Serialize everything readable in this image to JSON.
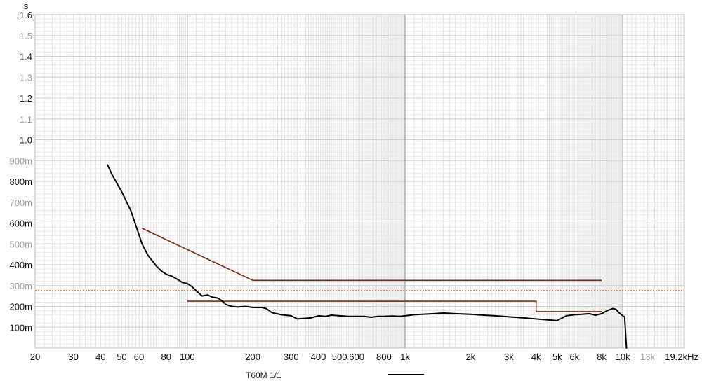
{
  "chart_data": {
    "type": "line",
    "x_scale": "log",
    "y_unit": "s",
    "x_unit_suffix": "kHz",
    "xlim": [
      20,
      19200
    ],
    "ylim": [
      0,
      1.6
    ],
    "grid": true,
    "x_ticks": [
      {
        "value": 20,
        "label": "20",
        "style": "major"
      },
      {
        "value": 30,
        "label": "30",
        "style": "major"
      },
      {
        "value": 40,
        "label": "40",
        "style": "major"
      },
      {
        "value": 50,
        "label": "50",
        "style": "major"
      },
      {
        "value": 60,
        "label": "60",
        "style": "major"
      },
      {
        "value": 80,
        "label": "80",
        "style": "major"
      },
      {
        "value": 100,
        "label": "100",
        "style": "major"
      },
      {
        "value": 200,
        "label": "200",
        "style": "major"
      },
      {
        "value": 300,
        "label": "300",
        "style": "major"
      },
      {
        "value": 400,
        "label": "400",
        "style": "major"
      },
      {
        "value": 500,
        "label": "500",
        "style": "major"
      },
      {
        "value": 600,
        "label": "600",
        "style": "major"
      },
      {
        "value": 800,
        "label": "800",
        "style": "major"
      },
      {
        "value": 1000,
        "label": "1k",
        "style": "major"
      },
      {
        "value": 2000,
        "label": "2k",
        "style": "major"
      },
      {
        "value": 3000,
        "label": "3k",
        "style": "major"
      },
      {
        "value": 4000,
        "label": "4k",
        "style": "major"
      },
      {
        "value": 5000,
        "label": "5k",
        "style": "major"
      },
      {
        "value": 6000,
        "label": "6k",
        "style": "major"
      },
      {
        "value": 8000,
        "label": "8k",
        "style": "major"
      },
      {
        "value": 10000,
        "label": "10k",
        "style": "major"
      },
      {
        "value": 13000,
        "label": "13k",
        "style": "minor"
      },
      {
        "value": 19200,
        "label": "19.2kHz",
        "style": "major"
      }
    ],
    "y_ticks": [
      {
        "value": 0.1,
        "label": "100m",
        "style": "major"
      },
      {
        "value": 0.2,
        "label": "200m",
        "style": "major"
      },
      {
        "value": 0.3,
        "label": "300m",
        "style": "minor"
      },
      {
        "value": 0.4,
        "label": "400m",
        "style": "major"
      },
      {
        "value": 0.5,
        "label": "500m",
        "style": "minor"
      },
      {
        "value": 0.6,
        "label": "600m",
        "style": "major"
      },
      {
        "value": 0.7,
        "label": "700m",
        "style": "minor"
      },
      {
        "value": 0.8,
        "label": "800m",
        "style": "major"
      },
      {
        "value": 0.9,
        "label": "900m",
        "style": "minor"
      },
      {
        "value": 1.0,
        "label": "1.0",
        "style": "major"
      },
      {
        "value": 1.1,
        "label": "1.1",
        "style": "minor"
      },
      {
        "value": 1.2,
        "label": "1.2",
        "style": "major"
      },
      {
        "value": 1.3,
        "label": "1.3",
        "style": "minor"
      },
      {
        "value": 1.4,
        "label": "1.4",
        "style": "major"
      },
      {
        "value": 1.5,
        "label": "1.5",
        "style": "minor"
      },
      {
        "value": 1.6,
        "label": "1.6",
        "style": "major"
      }
    ],
    "series": [
      {
        "name": "T60M 1/1",
        "color": "#000000",
        "points": [
          [
            43,
            0.88
          ],
          [
            45,
            0.835
          ],
          [
            50,
            0.75
          ],
          [
            55,
            0.66
          ],
          [
            58,
            0.59
          ],
          [
            62,
            0.5
          ],
          [
            66,
            0.445
          ],
          [
            72,
            0.395
          ],
          [
            76,
            0.37
          ],
          [
            80,
            0.355
          ],
          [
            85,
            0.345
          ],
          [
            90,
            0.33
          ],
          [
            95,
            0.315
          ],
          [
            100,
            0.31
          ],
          [
            105,
            0.295
          ],
          [
            110,
            0.275
          ],
          [
            117,
            0.25
          ],
          [
            124,
            0.255
          ],
          [
            130,
            0.245
          ],
          [
            138,
            0.24
          ],
          [
            145,
            0.225
          ],
          [
            150,
            0.21
          ],
          [
            160,
            0.2
          ],
          [
            170,
            0.197
          ],
          [
            185,
            0.2
          ],
          [
            200,
            0.195
          ],
          [
            220,
            0.195
          ],
          [
            230,
            0.19
          ],
          [
            245,
            0.17
          ],
          [
            270,
            0.16
          ],
          [
            300,
            0.155
          ],
          [
            320,
            0.14
          ],
          [
            340,
            0.142
          ],
          [
            370,
            0.145
          ],
          [
            400,
            0.155
          ],
          [
            430,
            0.152
          ],
          [
            460,
            0.158
          ],
          [
            500,
            0.155
          ],
          [
            550,
            0.152
          ],
          [
            600,
            0.152
          ],
          [
            650,
            0.152
          ],
          [
            700,
            0.148
          ],
          [
            750,
            0.152
          ],
          [
            800,
            0.152
          ],
          [
            870,
            0.154
          ],
          [
            950,
            0.152
          ],
          [
            1000,
            0.155
          ],
          [
            1100,
            0.16
          ],
          [
            1200,
            0.162
          ],
          [
            1350,
            0.165
          ],
          [
            1500,
            0.168
          ],
          [
            1700,
            0.165
          ],
          [
            2000,
            0.162
          ],
          [
            2300,
            0.158
          ],
          [
            2600,
            0.155
          ],
          [
            3000,
            0.15
          ],
          [
            3500,
            0.145
          ],
          [
            4000,
            0.14
          ],
          [
            4500,
            0.135
          ],
          [
            5000,
            0.132
          ],
          [
            5500,
            0.155
          ],
          [
            6000,
            0.16
          ],
          [
            6500,
            0.162
          ],
          [
            7000,
            0.165
          ],
          [
            7500,
            0.158
          ],
          [
            8000,
            0.165
          ],
          [
            8500,
            0.18
          ],
          [
            9000,
            0.19
          ],
          [
            9300,
            0.186
          ],
          [
            9600,
            0.17
          ],
          [
            10000,
            0.155
          ],
          [
            10200,
            0.15
          ],
          [
            10400,
            0.0
          ]
        ]
      }
    ],
    "reference_lines": [
      {
        "color": "#6b2e18",
        "points": [
          [
            62,
            0.575
          ],
          [
            200,
            0.325
          ],
          [
            8000,
            0.325
          ]
        ]
      },
      {
        "color": "#6b2e18",
        "points": [
          [
            100,
            0.225
          ],
          [
            4000,
            0.225
          ],
          [
            4000,
            0.175
          ],
          [
            8000,
            0.175
          ]
        ]
      }
    ],
    "dotted_line": {
      "y": 0.275,
      "color": "#8a3b1e"
    }
  }
}
